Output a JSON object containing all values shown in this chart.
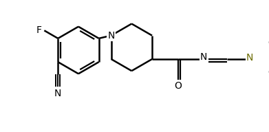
{
  "background_color": "#ffffff",
  "line_color": "#000000",
  "label_color_olive": "#6b6b00",
  "bond_lw": 1.8,
  "figsize": [
    3.91,
    1.92
  ],
  "dpi": 100,
  "xlim": [
    -0.2,
    7.8
  ],
  "ylim": [
    -1.5,
    3.0
  ]
}
